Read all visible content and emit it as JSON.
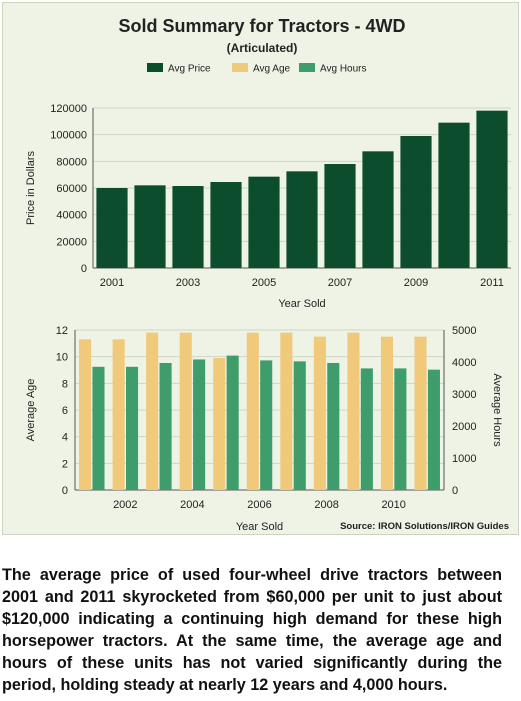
{
  "title": "Sold Summary for Tractors - 4WD",
  "subtitle": "(Articulated)",
  "legend": [
    {
      "label": "Avg Price",
      "color": "#0b4d2c"
    },
    {
      "label": "Avg Age",
      "color": "#f1c97b"
    },
    {
      "label": "Avg Hours",
      "color": "#3f9c6b"
    }
  ],
  "source": "Source: IRON Solutions/IRON Guides",
  "caption": "The average price of used four-wheel drive tractors between 2001 and 2011 skyrocketed from $60,000 per unit to just about $120,000 indicating a continuing high demand for these high horsepower tractors. At the same time, the average age and hours of these units has not varied significantly during the period, holding steady at nearly 12 years and 4,000 hours.",
  "chart_data": [
    {
      "type": "bar",
      "categories": [
        "2001",
        "2002",
        "2003",
        "2004",
        "2005",
        "2006",
        "2007",
        "2008",
        "2009",
        "2010",
        "2011"
      ],
      "x_tick_labels": [
        "2001",
        "2003",
        "2005",
        "2007",
        "2009",
        "2011"
      ],
      "series": [
        {
          "name": "Avg Price",
          "color": "#0b4d2c",
          "values": [
            60000,
            62000,
            61500,
            64500,
            68500,
            72500,
            78000,
            87500,
            99000,
            109000,
            118000
          ]
        }
      ],
      "xlabel": "Year Sold",
      "ylabel": "Price in Dollars",
      "ylim": [
        0,
        120000
      ],
      "y_ticks": [
        "0",
        "20000",
        "40000",
        "60000",
        "80000",
        "100000",
        "120000"
      ],
      "grid": true
    },
    {
      "type": "bar",
      "categories": [
        "2001",
        "2002",
        "2003",
        "2004",
        "2005",
        "2006",
        "2007",
        "2008",
        "2009",
        "2010",
        "2011"
      ],
      "x_tick_labels": [
        "2002",
        "2004",
        "2006",
        "2008",
        "2010"
      ],
      "series": [
        {
          "name": "Avg Age",
          "axis": "left",
          "color": "#f1c97b",
          "values": [
            11.3,
            11.3,
            11.8,
            11.8,
            9.9,
            11.8,
            11.8,
            11.5,
            11.8,
            11.5,
            11.5
          ]
        },
        {
          "name": "Avg Hours",
          "axis": "right",
          "color": "#3f9c6b",
          "values": [
            3850,
            3850,
            3970,
            4080,
            4200,
            4050,
            4020,
            3970,
            3800,
            3800,
            3760
          ]
        }
      ],
      "xlabel": "Year Sold",
      "ylabel": "Average Age",
      "ylabel_right": "Average Hours",
      "ylim": [
        0,
        12
      ],
      "ylim_right": [
        0,
        5000
      ],
      "y_ticks": [
        "0",
        "2",
        "4",
        "6",
        "8",
        "10",
        "12"
      ],
      "y_ticks_right": [
        "0",
        "1000",
        "2000",
        "3000",
        "4000",
        "5000"
      ],
      "grid": true
    }
  ]
}
